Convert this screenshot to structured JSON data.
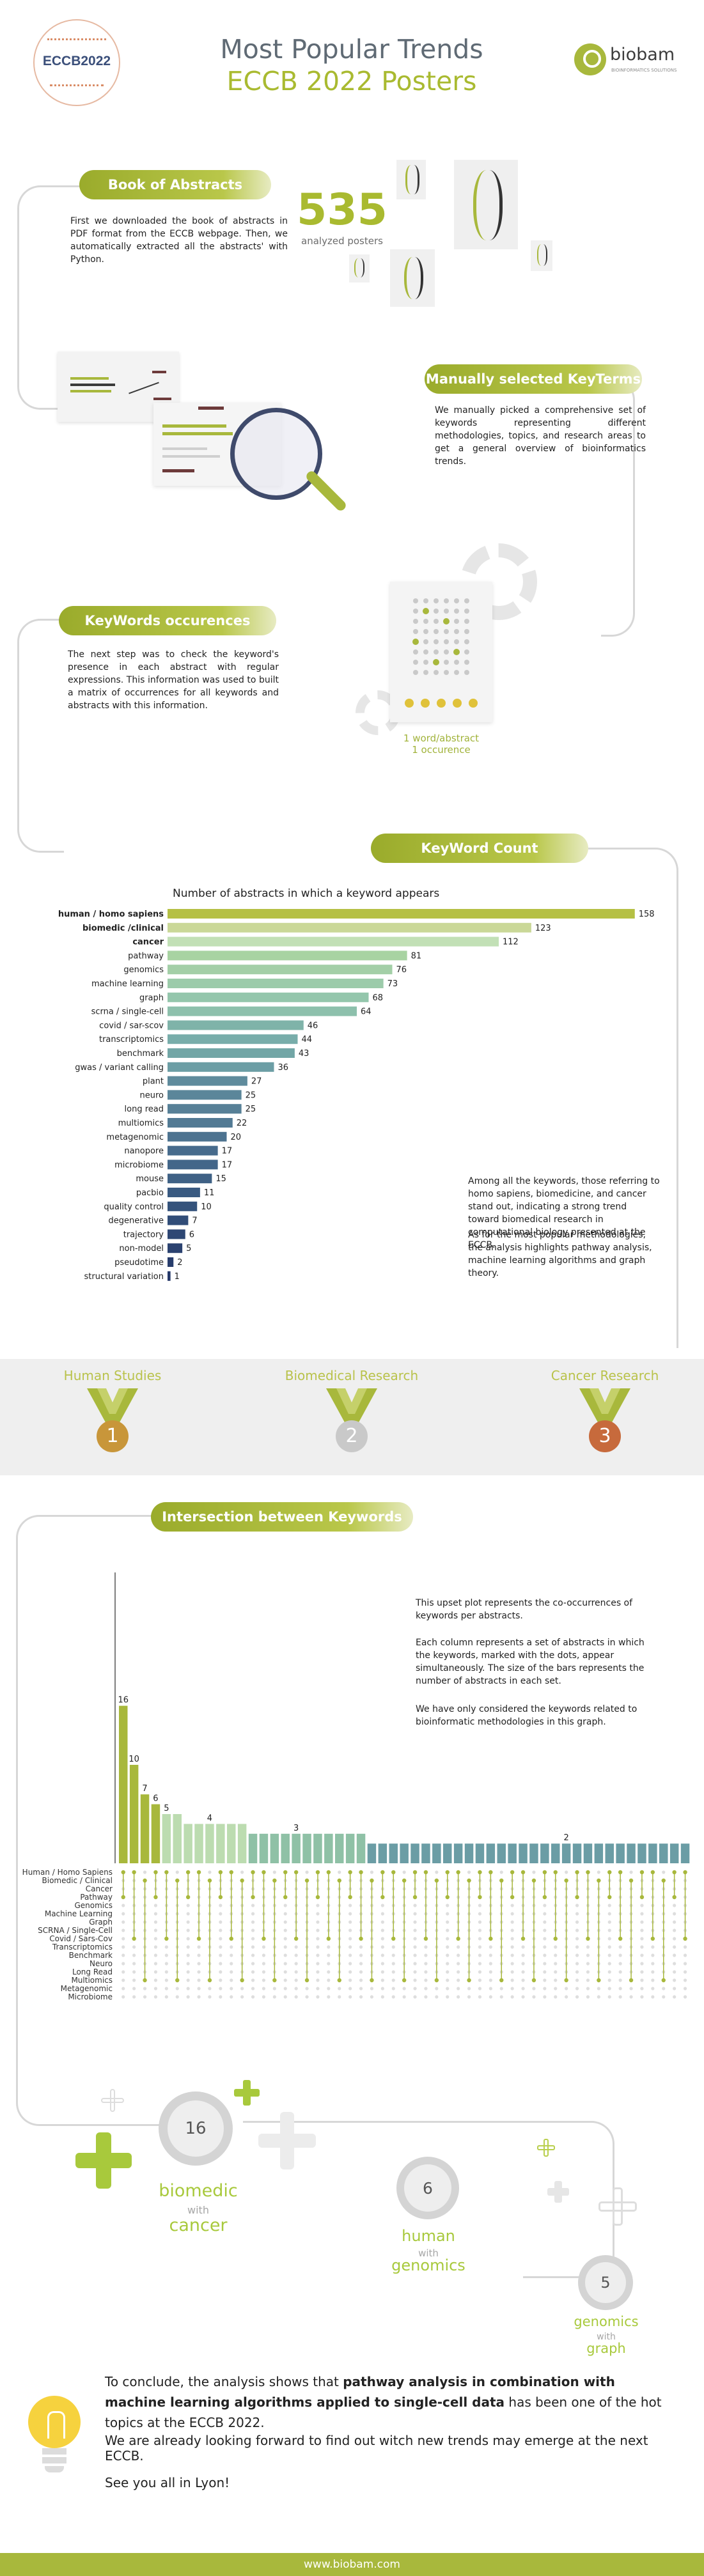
{
  "header": {
    "title_line1": "Most Popular Trends",
    "title_line2": "ECCB 2022 Posters",
    "left_logo_text": "ECCB2022",
    "right_logo_text": "biobam",
    "right_logo_tagline": "BIOINFORMATICS SOLUTIONS"
  },
  "section_abstracts": {
    "pill": "Book of Abstracts",
    "text": "First we downloaded the book of abstracts in PDF format from the ECCB webpage. Then, we automatically extracted all the abstracts' with Python.",
    "big_number": "535",
    "big_number_caption": "analyzed posters"
  },
  "section_keyterms": {
    "pill": "Manually selected KeyTerms",
    "text": "We manually picked a comprehensive set of keywords representing different methodologies, topics, and research areas to get a general overview of bioinformatics trends."
  },
  "section_occurrences": {
    "pill": "KeyWords occurences",
    "text": "The next step was to check the keyword's presence in each abstract with regular expressions. This information was used to built a matrix of occurrences for all keywords and abstracts with this information.",
    "matrix_caption_1": "1 word/abstract",
    "matrix_caption_2": "1 occurence"
  },
  "section_count": {
    "pill": "KeyWord Count",
    "paragraph_1": "Among all the keywords, those referring to homo sapiens, biomedicine, and cancer stand out, indicating a strong trend toward biomedical research in computational biology presented at the ECCB.",
    "paragraph_2": "As for the most popular methodologies, the analysis highlights pathway analysis, machine learning algorithms and graph theory."
  },
  "chart_data": [
    {
      "type": "bar",
      "orientation": "horizontal",
      "title": "Number of abstracts in which a keyword appears",
      "categories": [
        "human / homo sapiens",
        "biomedic /clinical",
        "cancer",
        "pathway",
        "genomics",
        "machine learning",
        "graph",
        "scrna / single-cell",
        "covid / sar-scov",
        "transcriptomics",
        "benchmark",
        "gwas / variant calling",
        "plant",
        "neuro",
        "long read",
        "multiomics",
        "metagenomic",
        "nanopore",
        "microbiome",
        "mouse",
        "pacbio",
        "quality control",
        "degenerative",
        "trajectory",
        "non-model",
        "pseudotime",
        "structural variation"
      ],
      "values": [
        158,
        123,
        112,
        81,
        76,
        73,
        68,
        64,
        46,
        44,
        43,
        36,
        27,
        25,
        25,
        22,
        20,
        17,
        17,
        15,
        11,
        10,
        7,
        6,
        5,
        2,
        1
      ],
      "xlim": [
        0,
        160
      ],
      "colors": [
        "#b5c044",
        "#cad898",
        "#c2e0b6",
        "#a8d3a2",
        "#a3cfa7",
        "#9ccbaa",
        "#94c6ac",
        "#8dc0ac",
        "#7fb3a9",
        "#78adaa",
        "#72a6a6",
        "#6c9ea5",
        "#5f8b9c",
        "#5b869a",
        "#578097",
        "#527a94",
        "#4d7390",
        "#476b8c",
        "#436689",
        "#3f6185",
        "#395a81",
        "#35537c",
        "#314d78",
        "#2e4774",
        "#2b4270",
        "#283d6c",
        "#253868"
      ]
    },
    {
      "type": "bar",
      "title": "",
      "description_text": "upset plot",
      "values": [
        16,
        10,
        7,
        6,
        5,
        5,
        4,
        4,
        4,
        4,
        4,
        4,
        3,
        3,
        3,
        3,
        3,
        3,
        3,
        3,
        3,
        3,
        3,
        2,
        2,
        2,
        2,
        2,
        2,
        2,
        2,
        2,
        2,
        2,
        2,
        2,
        2,
        2,
        2,
        2,
        2,
        2,
        2,
        2,
        2,
        2,
        2,
        2,
        2,
        2,
        2,
        2,
        2
      ],
      "value_labels_shown": [
        "16",
        "10",
        "7",
        "6",
        "5",
        "4",
        "3",
        "2"
      ],
      "set_labels": [
        "Human / Homo Sapiens",
        "Biomedic / Clinical",
        "Cancer",
        "Pathway",
        "Genomics",
        "Machine Learning",
        "Graph",
        "SCRNA / Single-Cell",
        "Covid / Sars-Cov",
        "Transcriptomics",
        "Benchmark",
        "Neuro",
        "Long Read",
        "Multiomics",
        "Metagenomic",
        "Microbiome"
      ],
      "ylim": [
        0,
        30
      ]
    }
  ],
  "medals": [
    {
      "label": "Human Studies",
      "rank": "1",
      "color": "#c8963a"
    },
    {
      "label": "Biomedical Research",
      "rank": "2",
      "color": "#c9c9c9"
    },
    {
      "label": "Cancer Research",
      "rank": "3",
      "color": "#c76a3c"
    }
  ],
  "section_intersection": {
    "pill": "Intersection between Keywords",
    "paragraph_1": "This upset plot represents the co-occurrences of keywords per abstracts.",
    "paragraph_2": "Each column represents a set of abstracts in which the keywords, marked with the dots, appear simultaneously. The size of the bars represents the number of abstracts in each set.",
    "paragraph_3": "We have only considered the keywords related to bioinformatic methodologies in this graph."
  },
  "pairs": [
    {
      "count": "16",
      "word1": "biomedic",
      "with": "with",
      "word2": "cancer"
    },
    {
      "count": "6",
      "word1": "human",
      "with": "with",
      "word2": "genomics"
    },
    {
      "count": "5",
      "word1": "genomics",
      "with": "with",
      "word2": "graph"
    }
  ],
  "conclusion": {
    "part1": "To conclude, the analysis shows that ",
    "bold": "pathway analysis in combination with machine learning algorithms applied to single-cell data",
    "part2": " has been one of the hot topics at the ECCB 2022.",
    "line2": "We are already looking forward to find out witch new trends may emerge at the next ECCB.",
    "line3": "See you all in Lyon!"
  },
  "footer": {
    "url": "www.biobam.com",
    "color": "#a8b83c"
  }
}
